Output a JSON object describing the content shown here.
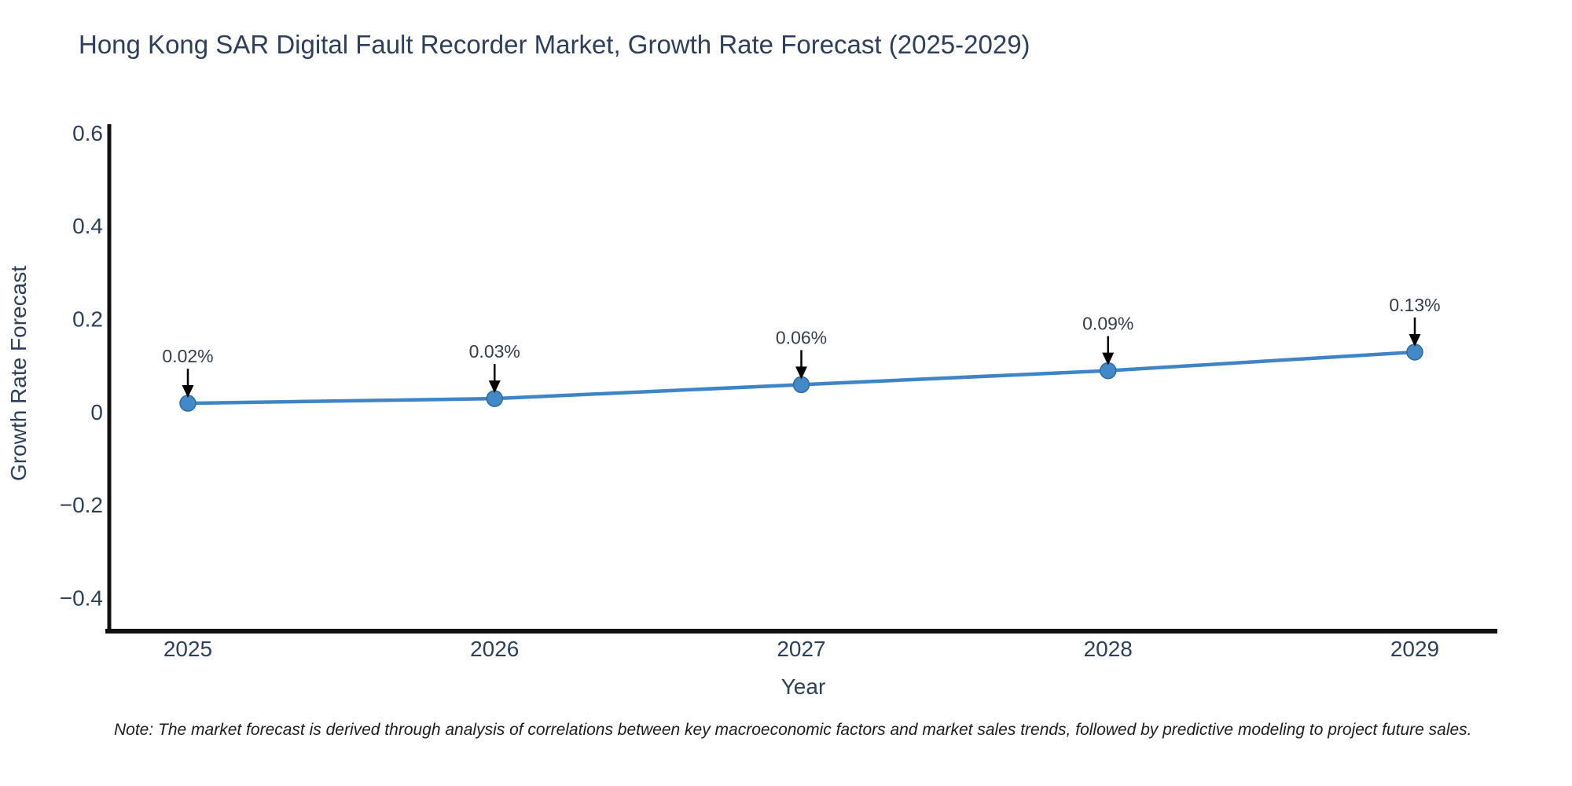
{
  "chart_data": {
    "type": "line",
    "title": "Hong Kong SAR Digital Fault Recorder Market, Growth Rate Forecast (2025-2029)",
    "xlabel": "Year",
    "ylabel": "Growth Rate Forecast",
    "x": [
      2025,
      2026,
      2027,
      2028,
      2029
    ],
    "y": [
      0.02,
      0.03,
      0.06,
      0.09,
      0.13
    ],
    "point_labels": [
      "0.02%",
      "0.03%",
      "0.06%",
      "0.09%",
      "0.13%"
    ],
    "xticks": [
      "2025",
      "2026",
      "2027",
      "2028",
      "2029"
    ],
    "yticks": [
      0.6,
      0.4,
      0.2,
      0,
      -0.2,
      -0.4
    ],
    "ylim": [
      -0.47,
      0.62
    ],
    "grid": false,
    "legend": "none",
    "marker": "circle",
    "annotation_style": "value label above point with downward black arrow"
  },
  "note": {
    "text": "Note: The market forecast is derived through analysis of correlations between key macroeconomic factors and market sales trends, followed by predictive modeling to project future sales."
  },
  "colors": {
    "background": "#ffffff",
    "line_blue": "#3f84c4",
    "marker_fill": "#4289c7",
    "marker_stroke": "#2f6ba3",
    "axis_text": "#2e3f5e",
    "annotation_text": "#363d49",
    "arrow": "#000000",
    "spine": "#111111",
    "note_text": "#1c1c1c"
  }
}
